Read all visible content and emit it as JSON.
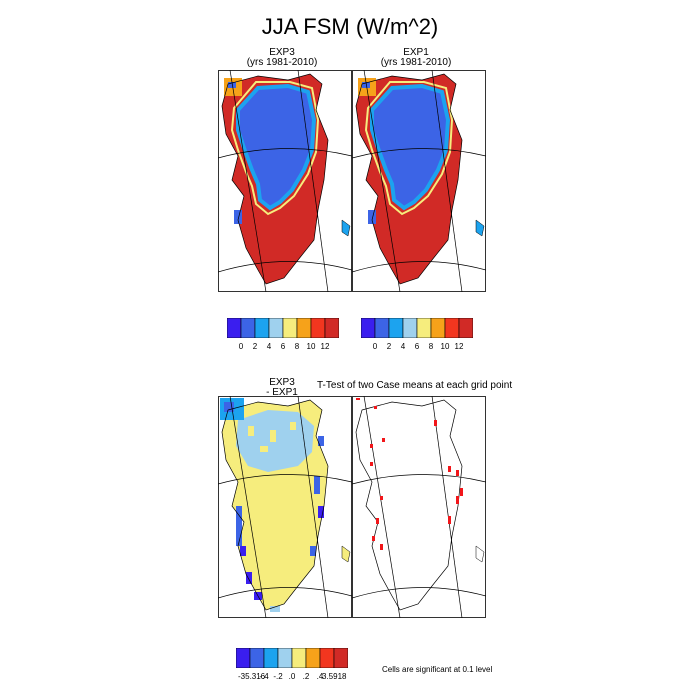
{
  "title": "JJA FSM (W/m^2)",
  "panels": {
    "exp3": {
      "name": "EXP3",
      "years": "(yrs 1981-2010)"
    },
    "exp1": {
      "name": "EXP1",
      "years": "(yrs 1981-2010)"
    },
    "diff": {
      "name": "EXP3",
      "sub": "- EXP1"
    },
    "ttest": {
      "title": "T-Test of two Case means at each grid point",
      "note": "Cells are significant at 0.1 level"
    }
  },
  "colorbars": {
    "abs": {
      "colors": [
        "#3a1eef",
        "#3c64e6",
        "#1ca3ef",
        "#9fd1ee",
        "#f6ed7d",
        "#f6a21a",
        "#f2361f",
        "#d12a26"
      ],
      "labels": [
        "0",
        "2",
        "4",
        "6",
        "8",
        "10",
        "12"
      ]
    },
    "diff": {
      "colors": [
        "#3a1eef",
        "#3c64e6",
        "#1ca3ef",
        "#9fd1ee",
        "#f6ed7d",
        "#f6a21a",
        "#f2361f",
        "#d12a26"
      ],
      "labels": [
        "-35.316",
        "-.4",
        "-.2",
        ".0",
        ".2",
        ".4",
        "3.5918"
      ]
    }
  },
  "colors": {
    "ice": "#3c64e6",
    "coast": "#d12a26",
    "diff_fill": "#f6ed7d",
    "significant": "#f2161a"
  }
}
